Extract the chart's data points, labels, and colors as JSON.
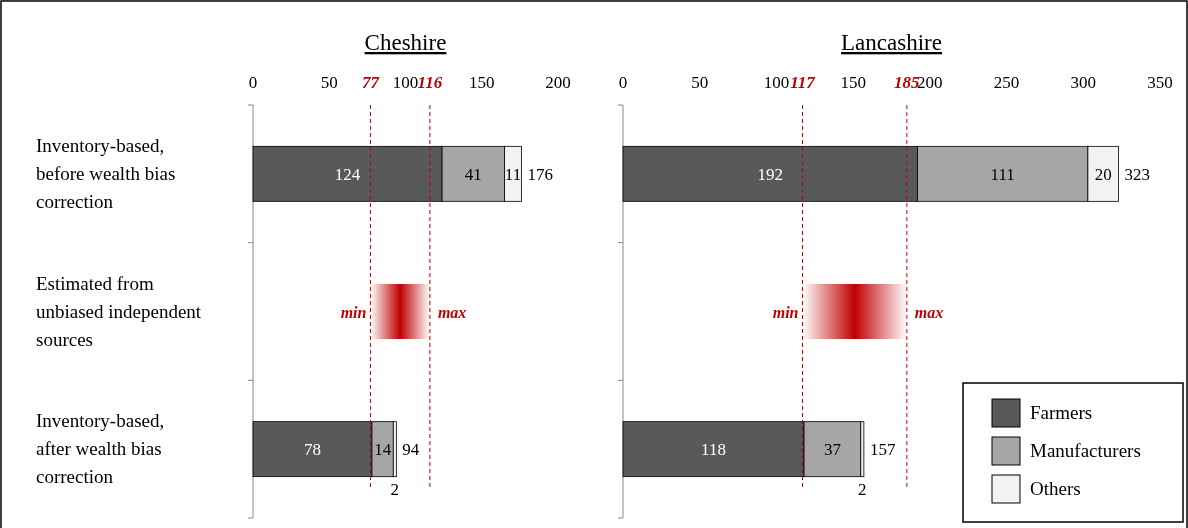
{
  "chart_data": [
    {
      "type": "bar",
      "orientation": "horizontal",
      "stacked": true,
      "title": "Cheshire",
      "categories": [
        "Inventory-based, before wealth bias correction",
        "Estimated from unbiased independent sources",
        "Inventory-based, after wealth bias correction"
      ],
      "series": [
        {
          "color": "#595959",
          "values": [
            124,
            null,
            78
          ]
        },
        {
          "color": "#a6a6a6",
          "values": [
            41,
            null,
            14
          ]
        },
        {
          "color": "#f2f2f2",
          "values": [
            11,
            null,
            2
          ]
        }
      ],
      "data_labels": true,
      "totals": [
        "176",
        null,
        "94"
      ],
      "xlim": [
        0,
        200
      ],
      "xticks": [
        0,
        50,
        100,
        150,
        200
      ],
      "ref_lines": [
        {
          "axis": "x",
          "value": 77,
          "label": "77",
          "color": "#c00000",
          "line_style": "dashed"
        },
        {
          "axis": "x",
          "value": 116,
          "label": "116",
          "color": "#c00000",
          "line_style": "dashed"
        }
      ],
      "bands": [
        {
          "axis": "x",
          "from": 77,
          "to": 116,
          "color": "#c00000"
        }
      ],
      "annotations": [
        {
          "text": "min",
          "x": 77,
          "y": "Estimated from unbiased independent sources"
        },
        {
          "text": "max",
          "x": 116,
          "y": "Estimated from unbiased independent sources"
        }
      ]
    },
    {
      "type": "bar",
      "orientation": "horizontal",
      "stacked": true,
      "title": "Lancashire",
      "categories": [
        "Inventory-based, before wealth bias correction",
        "Estimated from unbiased independent sources",
        "Inventory-based, after wealth bias correction"
      ],
      "tick_labels": "x",
      "series": [
        {
          "name": "Farmers",
          "color": "#595959",
          "values": [
            192,
            null,
            118
          ]
        },
        {
          "name": "Manufacturers",
          "color": "#a6a6a6",
          "values": [
            111,
            null,
            37
          ]
        },
        {
          "name": "Others",
          "color": "#f2f2f2",
          "values": [
            20,
            null,
            2
          ]
        }
      ],
      "data_labels": true,
      "totals": [
        "323",
        null,
        "157"
      ],
      "xlim": [
        0,
        350
      ],
      "xticks": [
        0,
        50,
        100,
        150,
        200,
        250,
        300,
        350
      ],
      "legend": "bottom right",
      "ref_lines": [
        {
          "axis": "x",
          "value": 117,
          "label": "117",
          "color": "#c00000",
          "line_style": "dashed"
        },
        {
          "axis": "x",
          "value": 185,
          "label": "185",
          "color": "#c00000",
          "line_style": "dashed"
        }
      ],
      "bands": [
        {
          "axis": "x",
          "from": 117,
          "to": 185,
          "color": "#c00000"
        }
      ],
      "annotations": [
        {
          "text": "min",
          "x": 117,
          "y": "Estimated from unbiased independent sources"
        },
        {
          "text": "max",
          "x": 185,
          "y": "Estimated from unbiased independent sources"
        }
      ]
    }
  ]
}
